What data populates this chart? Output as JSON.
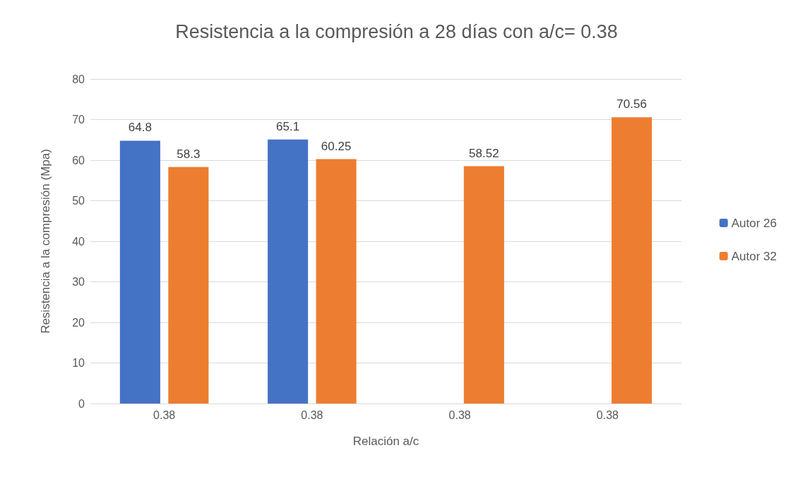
{
  "chart_data": {
    "type": "bar",
    "title": "Resistencia a la compresión a 28 días con a/c= 0.38",
    "xlabel": "Relación a/c",
    "ylabel": "Resistencia a la compresión (Mpa)",
    "categories": [
      "0.38",
      "0.38",
      "0.38",
      "0.38"
    ],
    "series": [
      {
        "name": "Autor 26",
        "color": "#4472c4",
        "values": [
          64.8,
          65.1,
          null,
          null
        ]
      },
      {
        "name": "Autor 32",
        "color": "#ed7d31",
        "values": [
          58.3,
          60.25,
          58.52,
          70.56
        ]
      }
    ],
    "ylim": [
      0,
      80
    ],
    "yticks": [
      0,
      10,
      20,
      30,
      40,
      50,
      60,
      70,
      80
    ],
    "grid": "y",
    "legend": "right",
    "data_labels": true
  }
}
